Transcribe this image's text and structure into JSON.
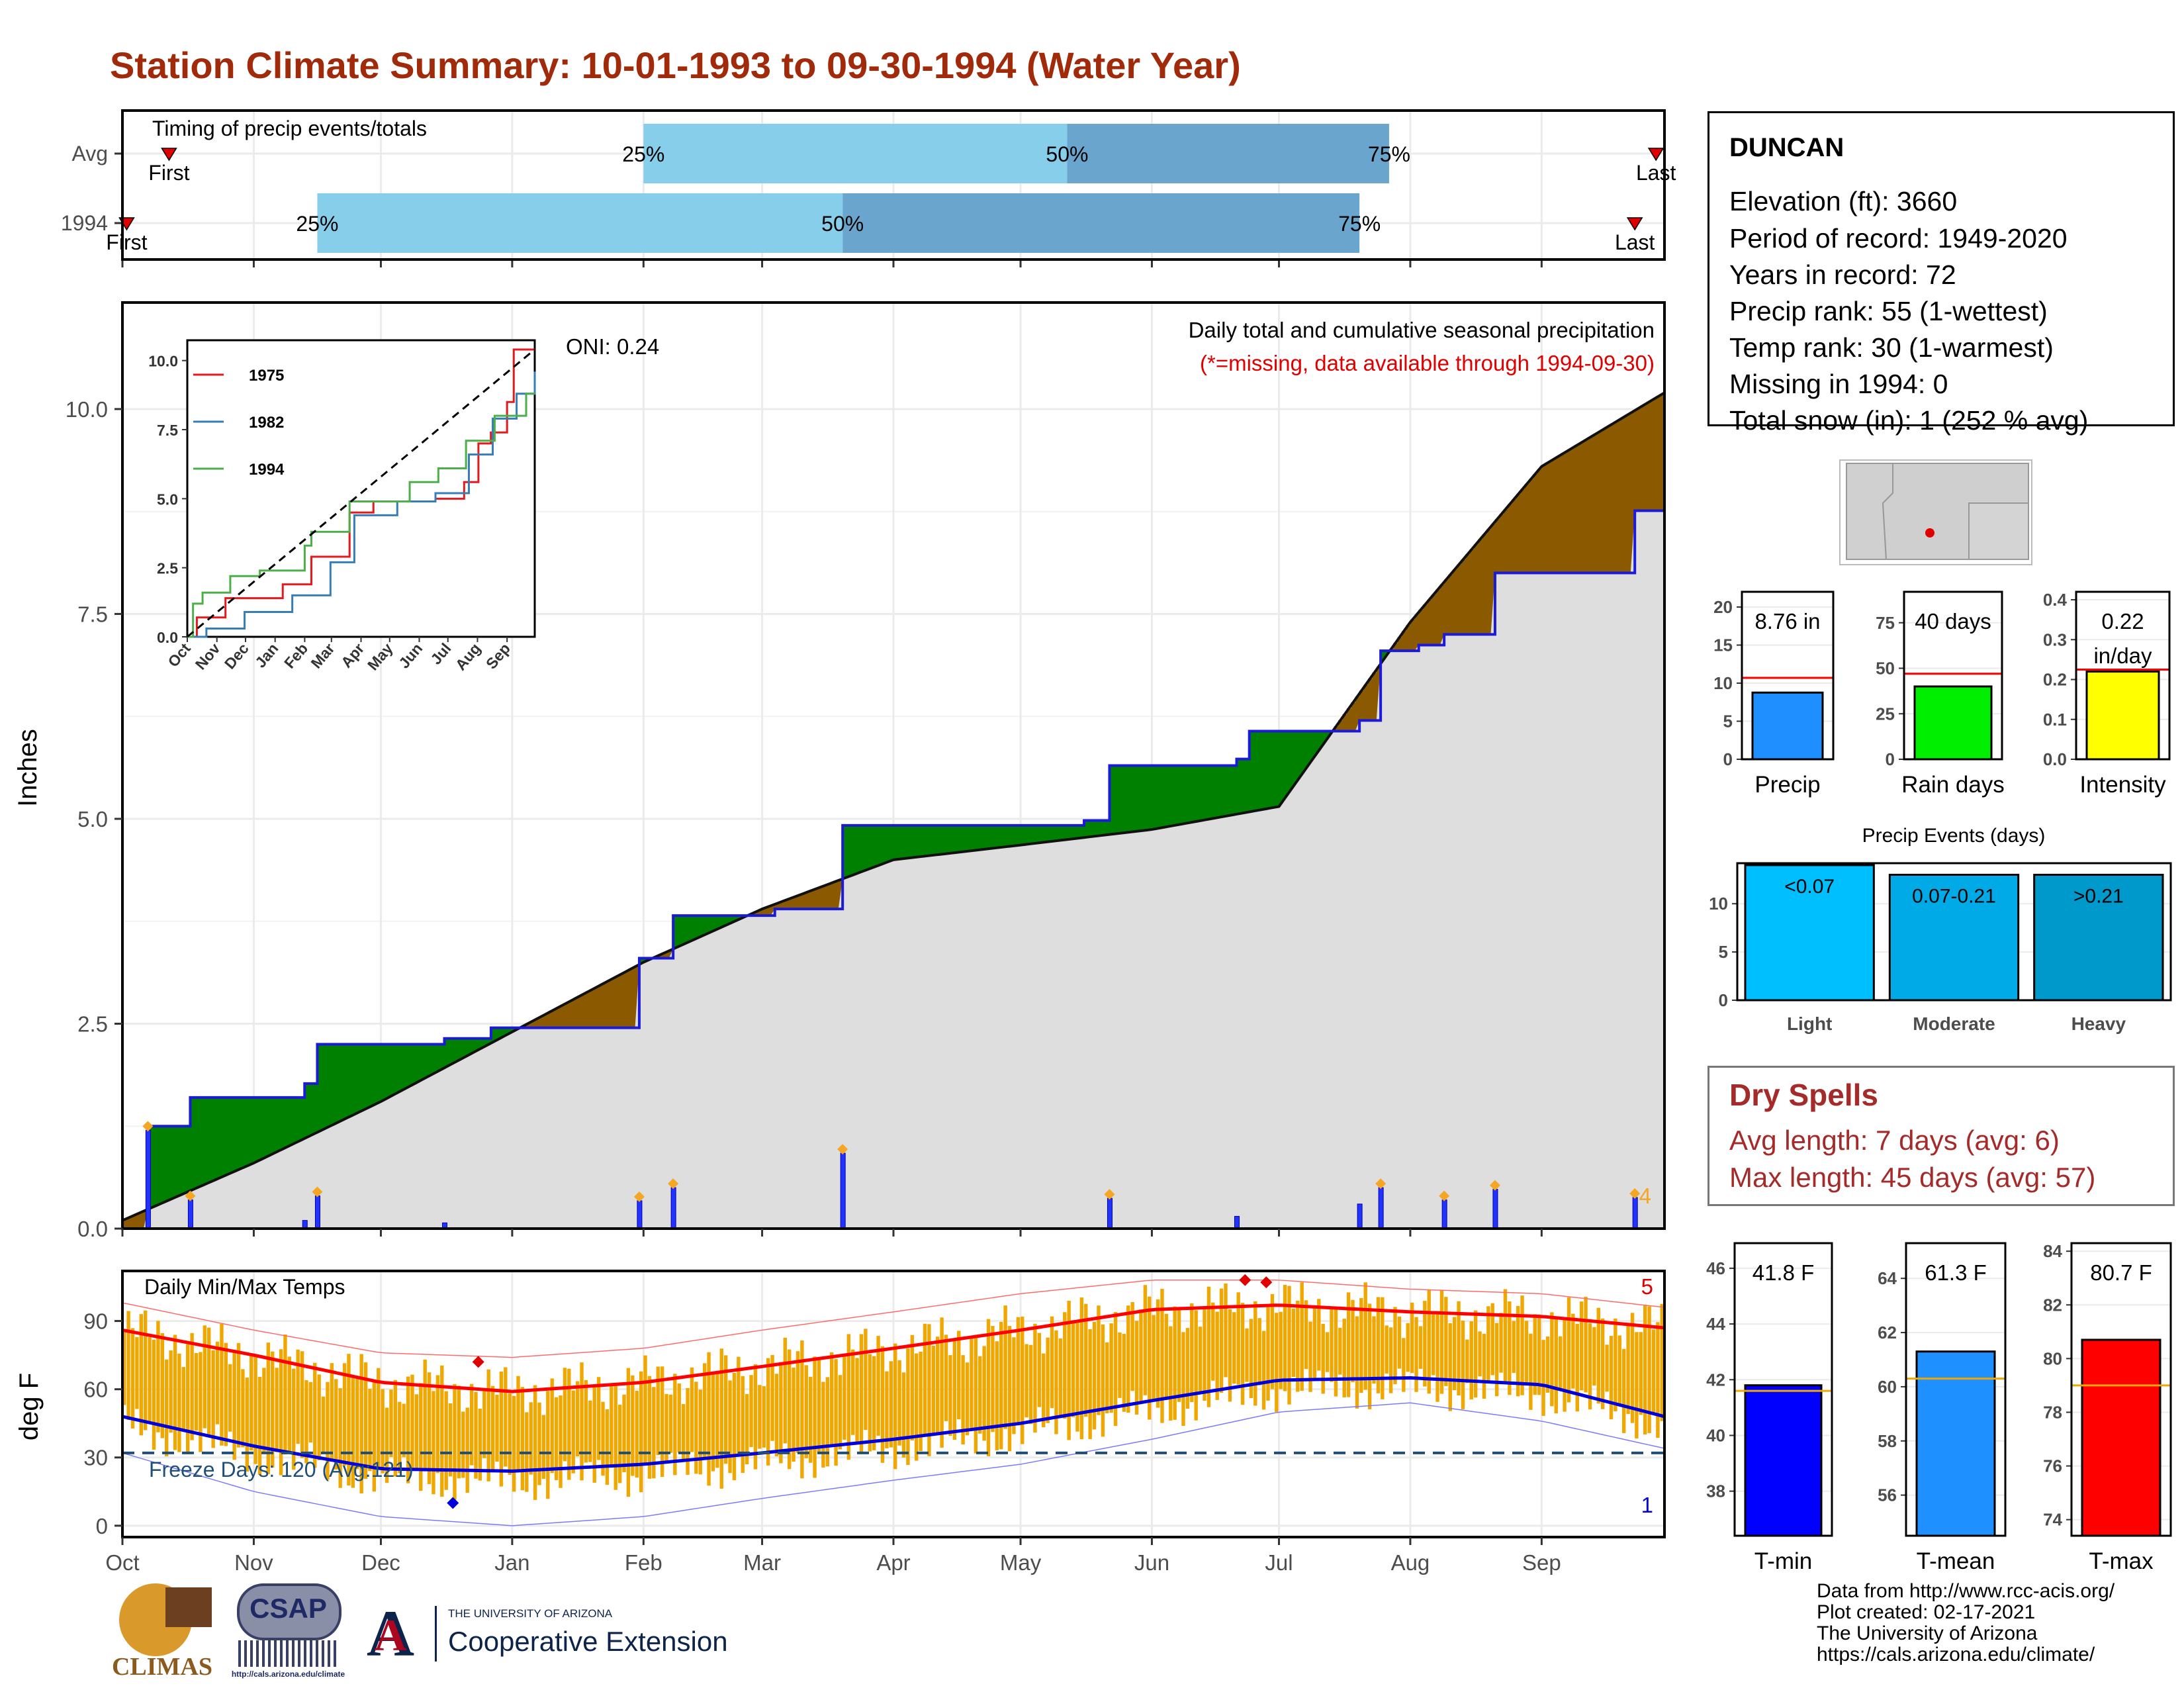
{
  "title": "Station Climate Summary: 10-01-1993 to 09-30-1994 (Water Year)",
  "colors": {
    "title": "#a02a0a",
    "blue_line": "#1a1ad8",
    "precip_bar": "#1f8fff",
    "rain_days_bar": "#00ee00",
    "intensity_bar": "#ffff00",
    "light": "#00bfff",
    "moderate": "#00aae6",
    "heavy": "#0099cc",
    "tmin": "#0000ff",
    "tmean": "#1e90ff",
    "tmax": "#ff0000",
    "temp_range": "#f0a800",
    "above": "#008000",
    "below": "#8b5a00",
    "cum_fill": "#dedede"
  },
  "station": {
    "name": "DUNCAN",
    "elevation": "Elevation (ft): 3660",
    "period": "Period of record: 1949-2020",
    "years": "Years in record: 72",
    "precip_rank": "Precip rank: 55 (1-wettest)",
    "temp_rank": "Temp rank: 30 (1-warmest)",
    "missing": "Missing in 1994: 0",
    "snow": "Total snow (in): 1 (252 % avg)"
  },
  "timing": {
    "title": "Timing of precip events/totals",
    "rows": [
      "Avg",
      "1994"
    ],
    "first_label": "First",
    "last_label": "Last",
    "p25": "25%",
    "p50": "50%",
    "p75": "75%"
  },
  "main_chart": {
    "ylabel": "Inches",
    "note_title": "Daily total and cumulative seasonal precipitation",
    "note_missing": "(*=missing, data available through 1994-09-30)",
    "oni": "ONI: 0.24",
    "count_label": "4",
    "yticks": [
      "0.0",
      "2.5",
      "5.0",
      "7.5",
      "10.0"
    ]
  },
  "inset": {
    "legend": [
      "1975",
      "1982",
      "1994"
    ],
    "yticks": [
      "0.0",
      "2.5",
      "5.0",
      "7.5",
      "10.0"
    ],
    "xticks": [
      "Oct",
      "Nov",
      "Dec",
      "Jan",
      "Feb",
      "Mar",
      "Apr",
      "May",
      "Jun",
      "Jul",
      "Aug",
      "Sep"
    ]
  },
  "temp_chart": {
    "ylabel": "deg F",
    "title": "Daily Min/Max Temps",
    "freeze": "Freeze Days: 120 (Avg:121)",
    "count_max": "5",
    "count_min": "1",
    "yticks": [
      "0",
      "30",
      "60",
      "90"
    ]
  },
  "months": [
    "Oct",
    "Nov",
    "Dec",
    "Jan",
    "Feb",
    "Mar",
    "Apr",
    "May",
    "Jun",
    "Jul",
    "Aug",
    "Sep"
  ],
  "summary_bars": {
    "precip": {
      "label": "Precip",
      "value_text": "8.76 in",
      "yticks": [
        "0",
        "5",
        "10",
        "15",
        "20"
      ]
    },
    "rain_days": {
      "label": "Rain days",
      "value_text": "40 days",
      "yticks": [
        "0",
        "25",
        "50",
        "75"
      ]
    },
    "intensity": {
      "label": "Intensity",
      "value_text": "0.22",
      "value_unit": "in/day",
      "yticks": [
        "0.0",
        "0.1",
        "0.2",
        "0.3",
        "0.4"
      ]
    }
  },
  "events": {
    "title": "Precip Events (days)",
    "yticks": [
      "0",
      "5",
      "10"
    ],
    "bars": [
      {
        "label": "Light",
        "inner": "<0.07"
      },
      {
        "label": "Moderate",
        "inner": "0.07-0.21"
      },
      {
        "label": "Heavy",
        "inner": ">0.21"
      }
    ]
  },
  "dry_spells": {
    "title": "Dry Spells",
    "avg": "Avg length: 7 days (avg: 6)",
    "max": "Max length: 45 days (avg: 57)"
  },
  "temp_bars": {
    "tmin": {
      "label": "T-min",
      "value_text": "41.8 F",
      "yticks": [
        "38",
        "40",
        "42",
        "44",
        "46"
      ]
    },
    "tmean": {
      "label": "T-mean",
      "value_text": "61.3 F",
      "yticks": [
        "56",
        "58",
        "60",
        "62",
        "64"
      ]
    },
    "tmax": {
      "label": "T-max",
      "value_text": "80.7 F",
      "yticks": [
        "74",
        "76",
        "78",
        "80",
        "82",
        "84"
      ]
    }
  },
  "credits": [
    "Data from http://www.rcc-acis.org/",
    "Plot created: 02-17-2021",
    "The University of Arizona",
    "https://cals.arizona.edu/climate/"
  ],
  "logos": {
    "climas": "CLIMAS",
    "csap": "CSAP",
    "csap_url": "http://cals.arizona.edu/climate",
    "ua_top": "THE UNIVERSITY OF ARIZONA",
    "ua_bottom": "Cooperative Extension"
  },
  "chart_data": [
    {
      "type": "bar",
      "title": "Timing of precip events/totals",
      "categories": [
        "Avg",
        "1994"
      ],
      "series": [
        {
          "name": "First",
          "values": [
            "1993-10-12",
            "1993-10-02"
          ]
        },
        {
          "name": "25%",
          "values": [
            "1994-02-01",
            "1993-11-16"
          ]
        },
        {
          "name": "50%",
          "values": [
            "1994-05-12",
            "1994-03-20"
          ]
        },
        {
          "name": "75%",
          "values": [
            "1994-07-27",
            "1994-07-20"
          ]
        },
        {
          "name": "Last",
          "values": [
            "1994-09-28",
            "1994-09-23"
          ]
        }
      ]
    },
    {
      "type": "area",
      "title": "Daily total and cumulative seasonal precipitation",
      "ylabel": "Inches",
      "x_unit": "date",
      "xlim": [
        "1993-10-01",
        "1994-09-30"
      ],
      "ylim": [
        0,
        11.3
      ],
      "series": [
        {
          "name": "cumulative 1994",
          "x": [
            "1993-10-01",
            "1993-10-07",
            "1993-10-17",
            "1993-11-13",
            "1993-11-16",
            "1993-12-16",
            "1993-12-27",
            "1994-01-31",
            "1994-02-08",
            "1994-03-04",
            "1994-03-20",
            "1994-05-16",
            "1994-05-22",
            "1994-06-21",
            "1994-06-24",
            "1994-07-20",
            "1994-07-25",
            "1994-08-03",
            "1994-08-09",
            "1994-08-21",
            "1994-09-23",
            "1994-09-30"
          ],
          "y": [
            0,
            1.25,
            1.6,
            1.77,
            2.25,
            2.32,
            2.45,
            3.3,
            3.82,
            3.9,
            4.92,
            4.98,
            5.65,
            5.73,
            6.07,
            6.2,
            7.05,
            7.12,
            7.25,
            8.0,
            8.76,
            8.76
          ]
        },
        {
          "name": "average cumulative",
          "x": [
            "1993-10-01",
            "1993-11-01",
            "1993-12-01",
            "1994-01-01",
            "1994-02-01",
            "1994-03-01",
            "1994-04-01",
            "1994-05-01",
            "1994-06-01",
            "1994-07-01",
            "1994-08-01",
            "1994-09-01",
            "1994-09-30"
          ],
          "y": [
            0.1,
            0.8,
            1.55,
            2.4,
            3.25,
            3.9,
            4.5,
            4.68,
            4.87,
            5.15,
            7.4,
            9.3,
            10.2
          ]
        },
        {
          "name": "daily precip",
          "x": [
            "1993-10-07",
            "1993-10-17",
            "1993-11-13",
            "1993-11-16",
            "1993-12-16",
            "1994-01-31",
            "1994-02-08",
            "1994-03-20",
            "1994-05-22",
            "1994-06-21",
            "1994-07-20",
            "1994-07-25",
            "1994-08-09",
            "1994-08-21",
            "1994-09-23"
          ],
          "y": [
            1.2,
            0.35,
            0.1,
            0.4,
            0.07,
            0.34,
            0.5,
            0.92,
            0.37,
            0.15,
            0.3,
            0.5,
            0.35,
            0.48,
            0.38
          ]
        }
      ]
    },
    {
      "type": "line",
      "title": "Daily Min/Max Temps",
      "ylabel": "deg F",
      "x_unit": "date",
      "ylim": [
        -5,
        112
      ],
      "x": [
        "1993-10-01",
        "1993-11-01",
        "1993-12-01",
        "1994-01-01",
        "1994-02-01",
        "1994-03-01",
        "1994-04-01",
        "1994-05-01",
        "1994-06-01",
        "1994-07-01",
        "1994-08-01",
        "1994-09-01",
        "1994-09-30"
      ],
      "series": [
        {
          "name": "avg max",
          "values": [
            86,
            75,
            63,
            59,
            63,
            70,
            78,
            86,
            95,
            97,
            94,
            92,
            87
          ]
        },
        {
          "name": "avg min",
          "values": [
            48,
            35,
            25,
            24,
            27,
            32,
            38,
            45,
            55,
            64,
            65,
            62,
            48
          ]
        },
        {
          "name": "record max",
          "values": [
            98,
            86,
            76,
            74,
            78,
            86,
            94,
            102,
            108,
            108,
            104,
            102,
            96
          ]
        },
        {
          "name": "record min",
          "values": [
            32,
            15,
            4,
            0,
            4,
            12,
            20,
            27,
            38,
            50,
            54,
            46,
            34
          ]
        }
      ],
      "hlines": [
        32
      ]
    },
    {
      "type": "bar",
      "categories": [
        "Precip"
      ],
      "values": [
        8.76
      ],
      "reference": 10.7,
      "ylim": [
        0,
        22
      ]
    },
    {
      "type": "bar",
      "categories": [
        "Rain days"
      ],
      "values": [
        40
      ],
      "reference": 47,
      "ylim": [
        0,
        92
      ]
    },
    {
      "type": "bar",
      "categories": [
        "Intensity"
      ],
      "values": [
        0.22
      ],
      "reference": 0.225,
      "ylim": [
        0,
        0.42
      ]
    },
    {
      "type": "bar",
      "title": "Precip Events (days)",
      "categories": [
        "Light",
        "Moderate",
        "Heavy"
      ],
      "values": [
        14,
        13,
        13
      ],
      "ylim": [
        0,
        14
      ]
    },
    {
      "type": "bar",
      "categories": [
        "T-min"
      ],
      "values": [
        41.8
      ],
      "reference": 41.6,
      "ylim": [
        36.4,
        46.9
      ]
    },
    {
      "type": "bar",
      "categories": [
        "T-mean"
      ],
      "values": [
        61.3
      ],
      "reference": 60.3,
      "ylim": [
        54.5,
        65.3
      ]
    },
    {
      "type": "bar",
      "categories": [
        "T-max"
      ],
      "values": [
        80.7
      ],
      "reference": 79.0,
      "ylim": [
        73.4,
        84.3
      ]
    }
  ]
}
